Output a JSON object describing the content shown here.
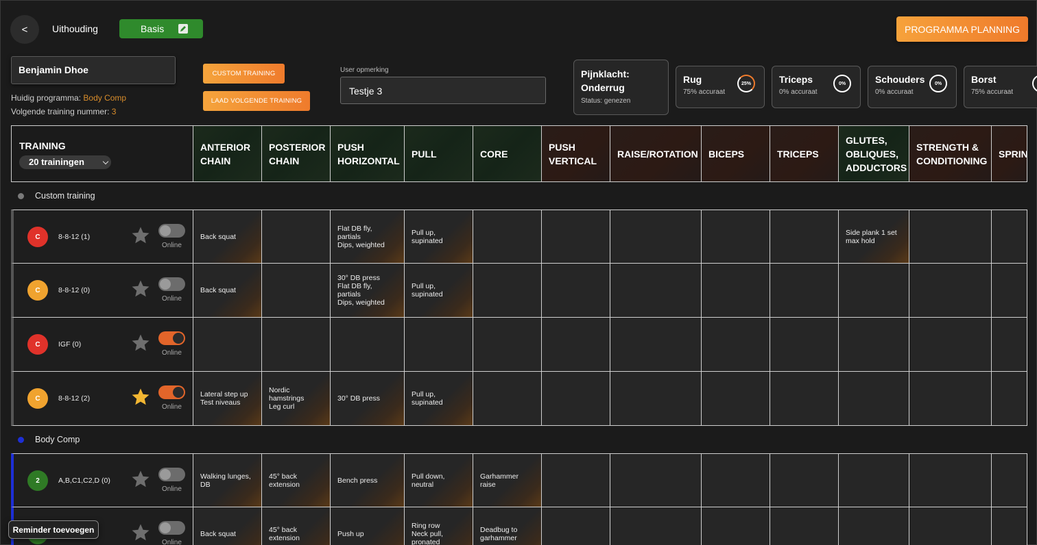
{
  "header": {
    "back_label": "<",
    "category": "Uithouding",
    "level_badge": "Basis",
    "planning_button": "PROGRAMMA PLANNING"
  },
  "client": {
    "name": "Benjamin Dhoe",
    "program_label": "Huidig programma:",
    "program_value": "Body Comp",
    "next_label": "Volgende training nummer:",
    "next_value": "3"
  },
  "actions": {
    "custom_training": "CUSTOM TRAINING",
    "load_next": "LAAD VOLGENDE TRAINING"
  },
  "user_note": {
    "label": "User opmerking",
    "value": "Testje 3"
  },
  "pain": {
    "title_line1": "Pijnklacht:",
    "title_line2": "Onderrug",
    "status": "Status: genezen"
  },
  "accuracy_cards": [
    {
      "name": "Rug",
      "accuracy": "75% accuraat",
      "ring": "25%",
      "ring_value": 0.25
    },
    {
      "name": "Triceps",
      "accuracy": "0% accuraat",
      "ring": "0%",
      "ring_value": 0
    },
    {
      "name": "Schouders",
      "accuracy": "0% accuraat",
      "ring": "0%",
      "ring_value": 0
    },
    {
      "name": "Borst",
      "accuracy": "75% accuraat",
      "ring": "",
      "ring_value": null
    }
  ],
  "table": {
    "training_header": "TRAINING",
    "count_dropdown": "20 trainingen",
    "columns": [
      {
        "label": "ANTERIOR CHAIN",
        "tone": "green"
      },
      {
        "label": "POSTERIOR CHAIN",
        "tone": "green"
      },
      {
        "label": "PUSH HORIZONTAL",
        "tone": "green"
      },
      {
        "label": "PULL",
        "tone": "green"
      },
      {
        "label": "CORE",
        "tone": "green"
      },
      {
        "label": "PUSH VERTICAL",
        "tone": "red"
      },
      {
        "label": "RAISE/ROTATION",
        "tone": "red"
      },
      {
        "label": "BICEPS",
        "tone": "red"
      },
      {
        "label": "TRICEPS",
        "tone": "red"
      },
      {
        "label": "GLUTES, OBLIQUES, ADDUCTORS",
        "tone": "green"
      },
      {
        "label": "STRENGTH & CONDITIONING",
        "tone": "red"
      },
      {
        "label": "SPRINT",
        "tone": "red"
      }
    ],
    "groups": [
      {
        "name": "Custom training",
        "dot_color": "#7a7a7a",
        "rows": [
          {
            "avatar": "C",
            "avatar_color": "#e0322a",
            "name": "8-8-12 (1)",
            "favorite": false,
            "online": false,
            "online_label": "Online",
            "cells": [
              "Back squat",
              "",
              "Flat DB fly, partials\nDips, weighted",
              "Pull up, supinated",
              "",
              "",
              "",
              "",
              "",
              "Side plank 1 set\nmax hold",
              "",
              ""
            ]
          },
          {
            "avatar": "C",
            "avatar_color": "#f0a32f",
            "name": "8-8-12 (0)",
            "favorite": false,
            "online": false,
            "online_label": "Online",
            "cells": [
              "Back squat",
              "",
              "30° DB press\nFlat DB fly, partials\nDips, weighted",
              "Pull up, supinated",
              "",
              "",
              "",
              "",
              "",
              "",
              "",
              ""
            ]
          },
          {
            "avatar": "C",
            "avatar_color": "#e0322a",
            "name": "IGF (0)",
            "favorite": false,
            "online": true,
            "online_label": "Online",
            "cells": [
              "",
              "",
              "",
              "",
              "",
              "",
              "",
              "",
              "",
              "",
              "",
              ""
            ]
          },
          {
            "avatar": "C",
            "avatar_color": "#f0a32f",
            "name": "8-8-12 (2)",
            "favorite": true,
            "online": true,
            "online_label": "Online",
            "cells": [
              "Lateral step up\nTest niveaus",
              "Nordic\nhamstrings\nLeg curl",
              "30° DB press",
              "Pull up, supinated",
              "",
              "",
              "",
              "",
              "",
              "",
              "",
              ""
            ]
          }
        ]
      },
      {
        "name": "Body Comp",
        "dot_color": "#1d2fd6",
        "rows": [
          {
            "avatar": "2",
            "avatar_color": "#2f7a25",
            "name": "A,B,C1,C2,D (0)",
            "favorite": false,
            "online": false,
            "online_label": "Online",
            "cells": [
              "Walking lunges,\nDB",
              "45° back\nextension",
              "Bench press",
              "Pull down, neutral",
              "Garhammer raise",
              "",
              "",
              "",
              "",
              "",
              "",
              ""
            ]
          },
          {
            "avatar": "",
            "avatar_color": "#2f7a25",
            "name": "",
            "favorite": false,
            "online": false,
            "online_label": "Online",
            "cells": [
              "Back squat",
              "45° back\nextension",
              "Push up",
              "Ring row\nNeck pull,\npronated",
              "Deadbug to\ngarhammer",
              "",
              "",
              "",
              "",
              "",
              "",
              ""
            ]
          }
        ]
      }
    ]
  },
  "reminder_button": "Reminder toevoegen",
  "colors": {
    "accent_orange": "#ef7b2c",
    "badge_green": "#2f8a2c",
    "star_gold": "#f2b632",
    "body_comp_blue": "#1d2fd6"
  }
}
